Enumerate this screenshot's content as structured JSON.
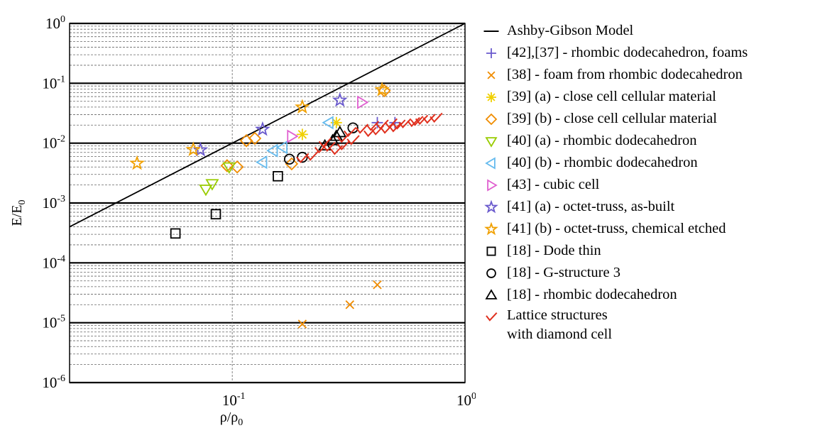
{
  "chart_data": {
    "type": "scatter",
    "x_scale": "log",
    "y_scale": "log",
    "xlim": [
      0.02,
      1
    ],
    "ylim": [
      1e-06,
      1
    ],
    "xlabel": "ρ/ρ0",
    "ylabel": "E/E0",
    "x_ticks": [
      {
        "value": 0.1,
        "base": "10",
        "exp": "-1"
      },
      {
        "value": 1,
        "base": "10",
        "exp": "0"
      }
    ],
    "y_ticks": [
      {
        "value": 1,
        "base": "10",
        "exp": "0"
      },
      {
        "value": 0.1,
        "base": "10",
        "exp": "-1"
      },
      {
        "value": 0.01,
        "base": "10",
        "exp": "-2"
      },
      {
        "value": 0.001,
        "base": "10",
        "exp": "-3"
      },
      {
        "value": 0.0001,
        "base": "10",
        "exp": "-4"
      },
      {
        "value": 1e-05,
        "base": "10",
        "exp": "-5"
      },
      {
        "value": 1e-06,
        "base": "10",
        "exp": "-6"
      }
    ],
    "grid": true,
    "legend_position": "right",
    "series": [
      {
        "name": "Ashby-Gibson Model",
        "marker": "line",
        "color": "#000000",
        "points": [
          [
            0.02,
            0.0004
          ],
          [
            1,
            1
          ]
        ]
      },
      {
        "name": "[42],[37] - rhombic dodecahedron, foams",
        "marker": "plus",
        "color": "#6a5acd",
        "points": [
          [
            0.42,
            0.022
          ],
          [
            0.5,
            0.022
          ]
        ]
      },
      {
        "name": "[38] - foam from rhombic dodecahedron",
        "marker": "x",
        "color": "#f08c00",
        "points": [
          [
            0.2,
            9.5e-06
          ],
          [
            0.32,
            2e-05
          ],
          [
            0.42,
            4.3e-05
          ]
        ]
      },
      {
        "name": "[39] (a) - close cell cellular material",
        "marker": "asterisk",
        "color": "#f0d000",
        "points": [
          [
            0.2,
            0.014
          ],
          [
            0.28,
            0.022
          ]
        ]
      },
      {
        "name": "[39] (b) - close cell cellular material",
        "marker": "diamond",
        "color": "#f08c00",
        "points": [
          [
            0.095,
            0.0042
          ],
          [
            0.105,
            0.004
          ],
          [
            0.115,
            0.011
          ],
          [
            0.125,
            0.012
          ],
          [
            0.18,
            0.0045
          ],
          [
            0.45,
            0.075
          ]
        ]
      },
      {
        "name": "[40] (a) - rhombic dodecahedron",
        "marker": "triangle-down",
        "color": "#99cc00",
        "points": [
          [
            0.077,
            0.0017
          ],
          [
            0.082,
            0.0021
          ],
          [
            0.097,
            0.004
          ]
        ]
      },
      {
        "name": "[40] (b) - rhombic dodecahedron",
        "marker": "triangle-left",
        "color": "#66bbee",
        "points": [
          [
            0.135,
            0.0048
          ],
          [
            0.15,
            0.0075
          ],
          [
            0.165,
            0.0085
          ],
          [
            0.26,
            0.022
          ]
        ]
      },
      {
        "name": "[43] - cubic cell",
        "marker": "triangle-right",
        "color": "#e060d0",
        "points": [
          [
            0.18,
            0.013
          ],
          [
            0.36,
            0.048
          ]
        ]
      },
      {
        "name": "[41] (a) - octet-truss, as-built",
        "marker": "star",
        "color": "#6a5acd",
        "points": [
          [
            0.073,
            0.0077
          ],
          [
            0.135,
            0.017
          ],
          [
            0.29,
            0.052
          ]
        ]
      },
      {
        "name": "[41] (b) - octet-truss, chemical etched",
        "marker": "star",
        "color": "#f0a000",
        "points": [
          [
            0.039,
            0.0046
          ],
          [
            0.068,
            0.0078
          ],
          [
            0.2,
            0.04
          ],
          [
            0.44,
            0.078
          ]
        ]
      },
      {
        "name": "[18] - Dode thin",
        "marker": "square",
        "color": "#000000",
        "points": [
          [
            0.057,
            0.00031
          ],
          [
            0.085,
            0.00065
          ],
          [
            0.157,
            0.0028
          ]
        ]
      },
      {
        "name": "[18] - G-structure 3",
        "marker": "circle",
        "color": "#000000",
        "points": [
          [
            0.176,
            0.0054
          ],
          [
            0.2,
            0.0058
          ],
          [
            0.33,
            0.018
          ]
        ]
      },
      {
        "name": "[18] - rhombic dodecahedron",
        "marker": "triangle-up",
        "color": "#000000",
        "points": [
          [
            0.25,
            0.009
          ],
          [
            0.27,
            0.011
          ],
          [
            0.28,
            0.013
          ],
          [
            0.29,
            0.015
          ]
        ]
      },
      {
        "name": "Lattice structures with diamond cell",
        "marker": "check",
        "color": "#e0301e",
        "points": [
          [
            0.2,
            0.0055
          ],
          [
            0.22,
            0.006
          ],
          [
            0.24,
            0.008
          ],
          [
            0.26,
            0.0085
          ],
          [
            0.28,
            0.0075
          ],
          [
            0.25,
            0.01
          ],
          [
            0.3,
            0.012
          ],
          [
            0.32,
            0.015
          ],
          [
            0.33,
            0.011
          ],
          [
            0.36,
            0.017
          ],
          [
            0.4,
            0.019
          ],
          [
            0.42,
            0.016
          ],
          [
            0.44,
            0.02
          ],
          [
            0.46,
            0.017
          ],
          [
            0.48,
            0.021
          ],
          [
            0.5,
            0.018
          ],
          [
            0.55,
            0.021
          ],
          [
            0.6,
            0.022
          ],
          [
            0.65,
            0.024
          ],
          [
            0.7,
            0.025
          ],
          [
            0.75,
            0.026
          ],
          [
            0.3,
            0.009
          ],
          [
            0.39,
            0.015
          ],
          [
            0.52,
            0.02
          ],
          [
            0.62,
            0.023
          ]
        ]
      }
    ]
  },
  "legend": {
    "items": [
      {
        "text": "Ashby-Gibson Model"
      },
      {
        "text": "[42],[37] - rhombic dodecahedron, foams"
      },
      {
        "text": "[38] - foam from rhombic dodecahedron"
      },
      {
        "text": "[39] (a) - close cell cellular material"
      },
      {
        "text": "[39] (b) - close cell cellular material"
      },
      {
        "text": "[40] (a) - rhombic dodecahedron"
      },
      {
        "text": "[40] (b) - rhombic dodecahedron"
      },
      {
        "text": "[43] - cubic cell"
      },
      {
        "text": "[41] (a) - octet-truss, as-built"
      },
      {
        "text": "[41] (b) - octet-truss, chemical etched"
      },
      {
        "text": "[18] - Dode thin"
      },
      {
        "text": "[18] - G-structure 3"
      },
      {
        "text": "[18] - rhombic dodecahedron"
      },
      {
        "text": "Lattice structures",
        "text2": "with diamond cell"
      }
    ]
  }
}
